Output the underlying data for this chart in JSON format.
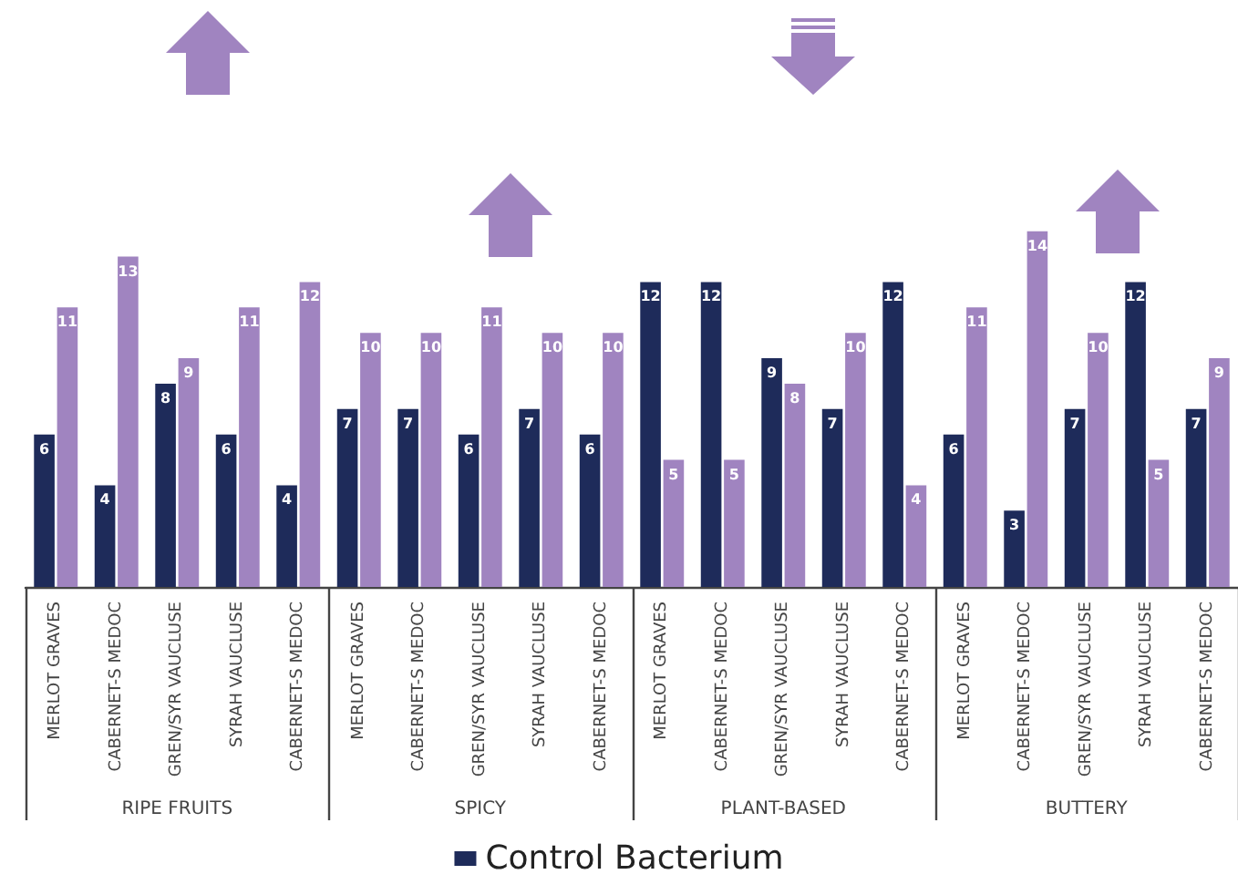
{
  "chart_data": {
    "type": "bar",
    "categories": [
      "MERLOT GRAVES",
      "CABERNET-S MEDOC",
      "GREN/SYR VAUCLUSE",
      "SYRAH VAUCLUSE",
      "CABERNET-S MEDOC",
      "MERLOT GRAVES",
      "CABERNET-S MEDOC",
      "GREN/SYR VAUCLUSE",
      "SYRAH VAUCLUSE",
      "CABERNET-S MEDOC",
      "MERLOT GRAVES",
      "CABERNET-S MEDOC",
      "GREN/SYR VAUCLUSE",
      "SYRAH VAUCLUSE",
      "CABERNET-S MEDOC",
      "MERLOT GRAVES",
      "CABERNET-S MEDOC",
      "GREN/SYR VAUCLUSE",
      "SYRAH VAUCLUSE",
      "CABERNET-S MEDOC"
    ],
    "series": [
      {
        "name": "Control Bacterium",
        "color": "#1e2b5a",
        "values": [
          6,
          4,
          8,
          6,
          4,
          7,
          7,
          6,
          7,
          6,
          12,
          12,
          9,
          7,
          12,
          6,
          3,
          7,
          12,
          7
        ]
      },
      {
        "color": "#a084c0",
        "values": [
          11,
          13,
          9,
          11,
          12,
          10,
          10,
          11,
          10,
          10,
          5,
          5,
          8,
          10,
          4,
          11,
          14,
          10,
          5,
          9
        ]
      }
    ],
    "annotations": [
      "RIPE FRUITS",
      "SPICY",
      "PLANT-BASED",
      "BUTTERY"
    ],
    "data_labels": true,
    "legend": "bottom"
  }
}
